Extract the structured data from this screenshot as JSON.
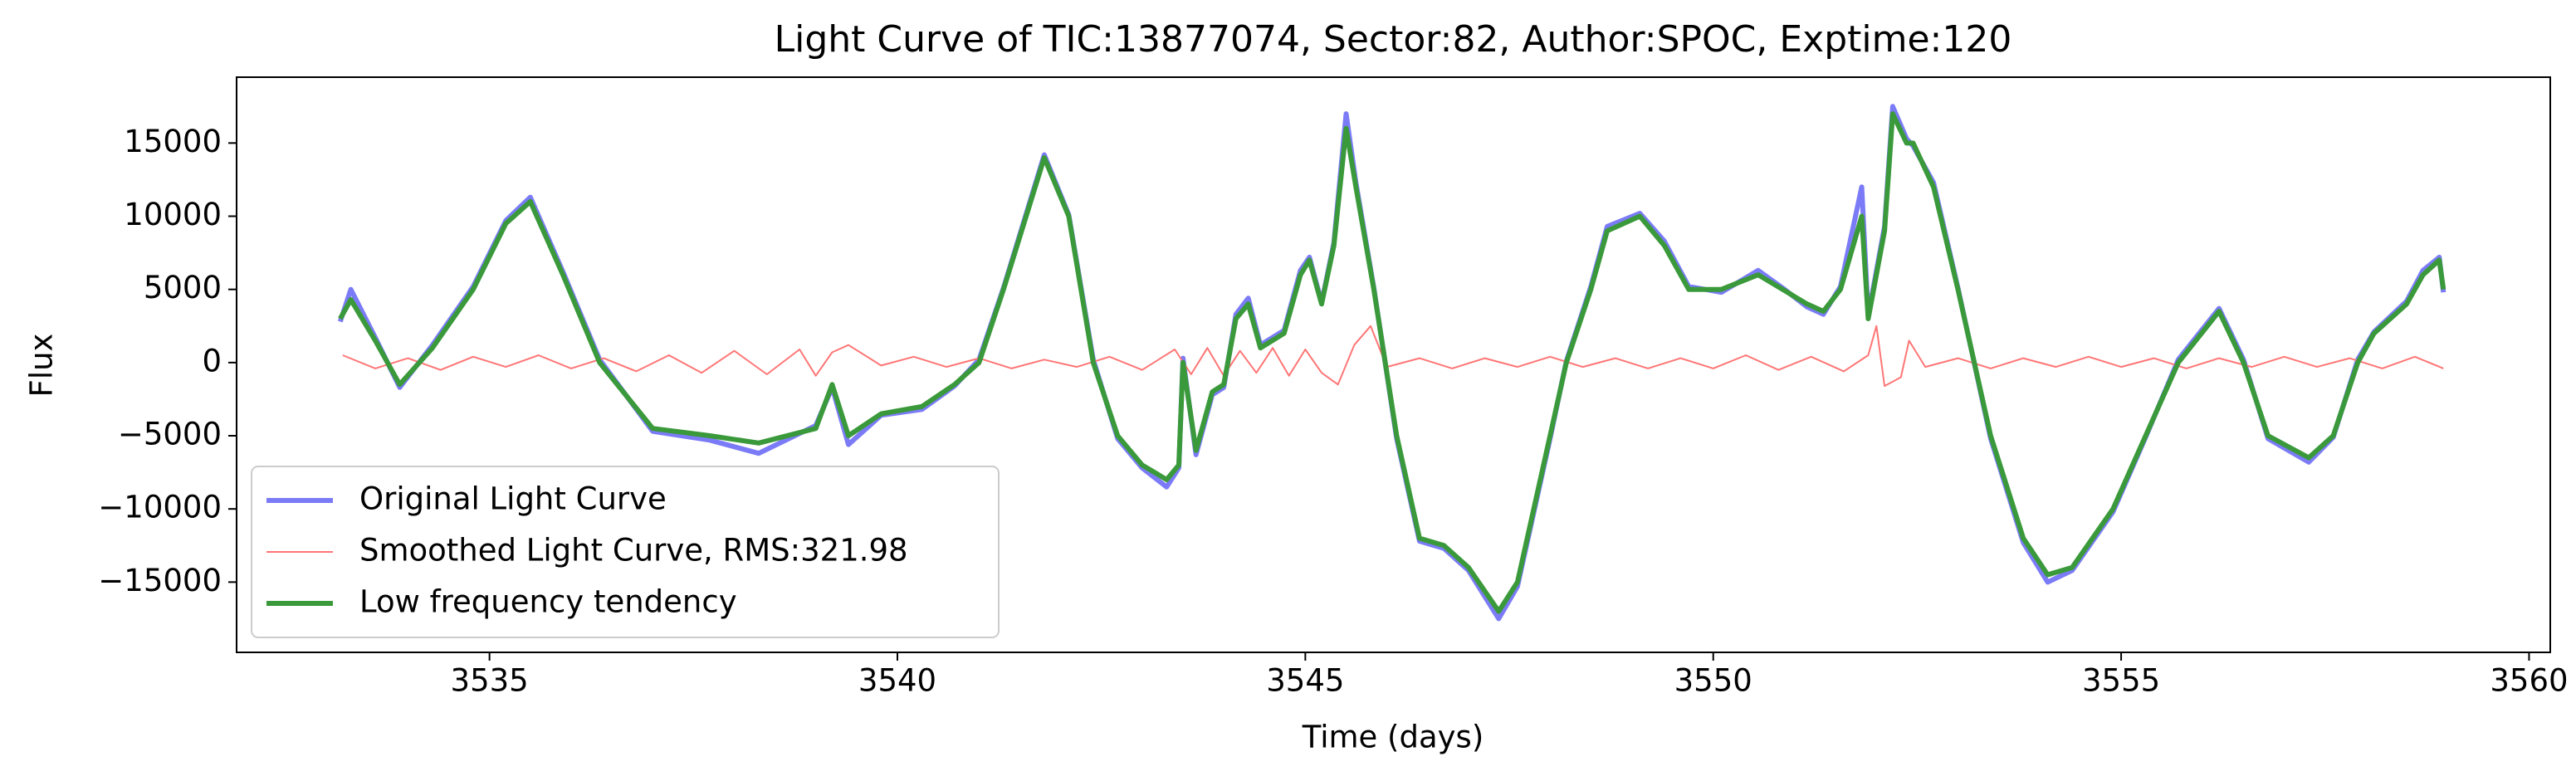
{
  "chart_data": {
    "type": "line",
    "title": "Light Curve of TIC:13877074, Sector:82, Author:SPOC, Exptime:120",
    "xlabel": "Time (days)",
    "ylabel": "Flux",
    "xlim": [
      3531.9,
      3560.26
    ],
    "ylim": [
      -19800,
      19500
    ],
    "xticks": [
      3535,
      3540,
      3545,
      3550,
      3555,
      3560
    ],
    "yticks": [
      {
        "value": -15000,
        "label": "−15000"
      },
      {
        "value": -10000,
        "label": "−10000"
      },
      {
        "value": -5000,
        "label": "−5000"
      },
      0,
      5000,
      10000,
      15000
    ],
    "legend": "lower left",
    "series": [
      {
        "name": "Original Light Curve",
        "color": "#7b7bf7",
        "width": 6,
        "x": [
          3533.17,
          3533.3,
          3533.6,
          3533.9,
          3534.3,
          3534.8,
          3535.2,
          3535.5,
          3535.9,
          3536.35,
          3537.0,
          3537.7,
          3538.3,
          3539.0,
          3539.2,
          3539.4,
          3539.8,
          3540.3,
          3540.7,
          3541.0,
          3541.3,
          3541.8,
          3542.1,
          3542.4,
          3542.7,
          3543.0,
          3543.3,
          3543.45,
          3543.5,
          3543.66,
          3543.86,
          3544.0,
          3544.15,
          3544.3,
          3544.45,
          3544.74,
          3544.94,
          3545.05,
          3545.2,
          3545.35,
          3545.5,
          3545.62,
          3545.84,
          3546.12,
          3546.4,
          3546.7,
          3547.0,
          3547.37,
          3547.6,
          3548.0,
          3548.2,
          3548.5,
          3548.7,
          3549.1,
          3549.4,
          3549.7,
          3550.1,
          3550.55,
          3550.85,
          3551.15,
          3551.35,
          3551.56,
          3551.82,
          3551.9,
          3552.1,
          3552.2,
          3552.37,
          3552.45,
          3552.7,
          3553.0,
          3553.4,
          3553.8,
          3554.1,
          3554.4,
          3554.9,
          3555.3,
          3555.7,
          3556.2,
          3556.5,
          3556.8,
          3557.3,
          3557.6,
          3557.9,
          3558.1,
          3558.5,
          3558.7,
          3558.9,
          3558.95
        ],
        "values": [
          2800,
          5000,
          1700,
          -1700,
          1200,
          5200,
          9700,
          11300,
          6200,
          200,
          -4700,
          -5300,
          -6200,
          -4300,
          -1700,
          -5600,
          -3600,
          -3200,
          -1600,
          200,
          5100,
          14200,
          10100,
          200,
          -5200,
          -7200,
          -8500,
          -7200,
          300,
          -6300,
          -2200,
          -1700,
          3300,
          4400,
          1200,
          2200,
          6300,
          7200,
          4100,
          8200,
          17000,
          12300,
          5100,
          -5200,
          -12200,
          -12700,
          -14200,
          -17500,
          -15300,
          -5200,
          100,
          5200,
          9300,
          10200,
          8300,
          5200,
          4800,
          6300,
          5100,
          3800,
          3300,
          5200,
          12000,
          3200,
          9300,
          17500,
          15300,
          14800,
          12300,
          5100,
          -5200,
          -12300,
          -15000,
          -14200,
          -10200,
          -5100,
          200,
          3700,
          200,
          -5200,
          -6800,
          -5100,
          200,
          2100,
          4200,
          6300,
          7200,
          4800
        ]
      },
      {
        "name": "Smoothed Light Curve, RMS:321.98",
        "color": "#ff7676",
        "width": 2,
        "x": [
          3533.2,
          3533.6,
          3534.0,
          3534.4,
          3534.8,
          3535.2,
          3535.6,
          3536.0,
          3536.4,
          3536.8,
          3537.2,
          3537.6,
          3538.0,
          3538.4,
          3538.8,
          3539.0,
          3539.2,
          3539.4,
          3539.8,
          3540.2,
          3540.6,
          3541.0,
          3541.4,
          3541.8,
          3542.2,
          3542.6,
          3543.0,
          3543.4,
          3543.6,
          3543.8,
          3544.0,
          3544.2,
          3544.4,
          3544.6,
          3544.8,
          3545.0,
          3545.2,
          3545.4,
          3545.6,
          3545.8,
          3546.0,
          3546.4,
          3546.8,
          3547.2,
          3547.6,
          3548.0,
          3548.4,
          3548.8,
          3549.2,
          3549.6,
          3550.0,
          3550.4,
          3550.8,
          3551.2,
          3551.6,
          3551.9,
          3552.0,
          3552.1,
          3552.3,
          3552.4,
          3552.6,
          3553.0,
          3553.4,
          3553.8,
          3554.2,
          3554.6,
          3555.0,
          3555.4,
          3555.8,
          3556.2,
          3556.6,
          3557.0,
          3557.4,
          3557.8,
          3558.2,
          3558.6,
          3558.95
        ],
        "values": [
          500,
          -400,
          300,
          -500,
          400,
          -300,
          500,
          -400,
          300,
          -600,
          500,
          -700,
          800,
          -800,
          900,
          -900,
          700,
          1200,
          -200,
          400,
          -300,
          300,
          -400,
          200,
          -300,
          400,
          -500,
          900,
          -800,
          1000,
          -900,
          800,
          -700,
          1000,
          -900,
          900,
          -700,
          -1500,
          1200,
          2500,
          -300,
          300,
          -400,
          300,
          -300,
          400,
          -300,
          300,
          -400,
          300,
          -400,
          500,
          -500,
          400,
          -600,
          500,
          2500,
          -1600,
          -1000,
          1500,
          -300,
          300,
          -400,
          300,
          -300,
          400,
          -300,
          300,
          -400,
          300,
          -300,
          400,
          -300,
          300,
          -400,
          400,
          -400
        ]
      },
      {
        "name": "Low frequency tendency",
        "color": "#3a993a",
        "width": 6,
        "x": [
          3533.17,
          3533.3,
          3533.6,
          3533.9,
          3534.3,
          3534.8,
          3535.2,
          3535.5,
          3535.9,
          3536.35,
          3537.0,
          3537.7,
          3538.3,
          3539.0,
          3539.2,
          3539.4,
          3539.8,
          3540.3,
          3540.7,
          3541.0,
          3541.3,
          3541.8,
          3542.1,
          3542.4,
          3542.7,
          3543.0,
          3543.3,
          3543.45,
          3543.5,
          3543.66,
          3543.86,
          3544.0,
          3544.15,
          3544.3,
          3544.45,
          3544.74,
          3544.94,
          3545.05,
          3545.2,
          3545.35,
          3545.5,
          3545.62,
          3545.84,
          3546.12,
          3546.4,
          3546.7,
          3547.0,
          3547.37,
          3547.6,
          3548.0,
          3548.2,
          3548.5,
          3548.7,
          3549.1,
          3549.4,
          3549.7,
          3550.1,
          3550.55,
          3550.85,
          3551.15,
          3551.35,
          3551.56,
          3551.82,
          3551.9,
          3552.1,
          3552.2,
          3552.37,
          3552.45,
          3552.7,
          3553.0,
          3553.4,
          3553.8,
          3554.1,
          3554.4,
          3554.9,
          3555.3,
          3555.7,
          3556.2,
          3556.5,
          3556.8,
          3557.3,
          3557.6,
          3557.9,
          3558.1,
          3558.5,
          3558.7,
          3558.9,
          3558.95
        ],
        "values": [
          3000,
          4300,
          1500,
          -1500,
          1000,
          5000,
          9500,
          11000,
          6000,
          0,
          -4500,
          -5000,
          -5500,
          -4500,
          -1500,
          -5000,
          -3500,
          -3000,
          -1500,
          0,
          5000,
          14000,
          10000,
          0,
          -5000,
          -7000,
          -8000,
          -7000,
          0,
          -6000,
          -2000,
          -1500,
          3000,
          4000,
          1000,
          2000,
          6000,
          7000,
          4000,
          8000,
          16000,
          12000,
          5000,
          -5000,
          -12000,
          -12500,
          -14000,
          -17000,
          -15000,
          -5000,
          0,
          5000,
          9000,
          10000,
          8000,
          5000,
          5000,
          6000,
          5000,
          4000,
          3500,
          5000,
          10000,
          3000,
          9000,
          17000,
          15000,
          15000,
          12000,
          5000,
          -5000,
          -12000,
          -14500,
          -14000,
          -10000,
          -5000,
          0,
          3500,
          0,
          -5000,
          -6500,
          -5000,
          0,
          2000,
          4000,
          6000,
          7000,
          5000
        ]
      }
    ]
  }
}
